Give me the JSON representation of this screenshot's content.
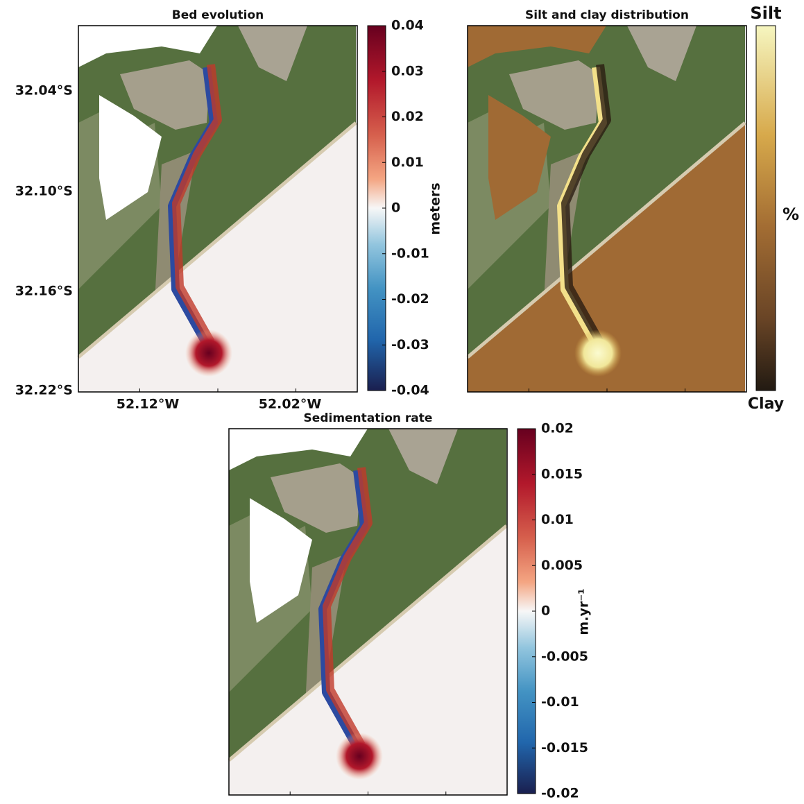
{
  "panels": [
    {
      "title": "Bed evolution",
      "lat_labels": [
        "32.04°S",
        "32.10°S",
        "32.16°S",
        "32.22°S"
      ],
      "lon_labels": [
        "52.12°W",
        "52.02°W"
      ],
      "colorbar": {
        "label": "meters",
        "lim": [
          -0.04,
          0.04
        ],
        "ticks": [
          0.04,
          0.03,
          0.02,
          0.01,
          0,
          -0.01,
          -0.02,
          -0.03,
          -0.04
        ]
      }
    },
    {
      "title": "Silt and clay distribution",
      "colorbar": {
        "label": "%",
        "top_label": "Silt",
        "bottom_label": "Clay"
      }
    },
    {
      "title": "Sedimentation rate",
      "colorbar": {
        "label": "m.yr⁻¹",
        "lim": [
          -0.02,
          0.02
        ],
        "ticks": [
          0.02,
          0.015,
          0.01,
          0.005,
          0,
          -0.005,
          -0.01,
          -0.015,
          -0.02
        ]
      }
    }
  ]
}
